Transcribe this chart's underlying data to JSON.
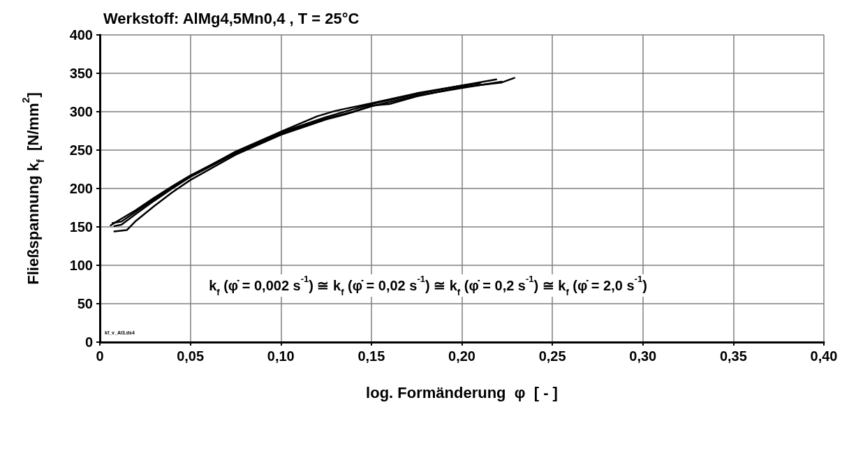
{
  "chart_data": {
    "type": "line",
    "title": "Werkstoff: AlMg4,5Mn0,4 , T = 25°C",
    "xlabel": "log. Formänderung  φ  [ - ]",
    "ylabel": "Fließspannung k$_{f}$  [N/mm$^{2}$]",
    "annotations": [
      "k$_{f}$ (φ̇ = 0,002 s$^{-1}$) ≅ k$_{f}$ (φ̇ = 0,02 s$^{-1}$) ≅ k$_{f}$ (φ̇ = 0,2 s$^{-1}$) ≅ k$_{f}$ (φ̇ = 2,0 s$^{-1}$)",
      "kf_v_Al3.ds4"
    ],
    "series": [
      {
        "color": "#000000",
        "x": [
          0.006,
          0.01,
          0.02,
          0.03,
          0.04,
          0.05,
          0.075,
          0.1,
          0.125,
          0.15,
          0.175,
          0.2,
          0.219
        ],
        "values": [
          152,
          158,
          172,
          188,
          203,
          217,
          247,
          273,
          293,
          310,
          323,
          334,
          342
        ]
      },
      {
        "color": "#000000",
        "x": [
          0.008,
          0.012,
          0.02,
          0.03,
          0.04,
          0.05,
          0.075,
          0.1,
          0.125,
          0.14,
          0.15,
          0.16,
          0.175,
          0.2,
          0.222,
          0.229
        ],
        "values": [
          151,
          153,
          167,
          184,
          200,
          215,
          246,
          271,
          291,
          300,
          308,
          310,
          320,
          332,
          338,
          344
        ]
      },
      {
        "color": "#000000",
        "x": [
          0.008,
          0.015,
          0.02,
          0.03,
          0.04,
          0.05,
          0.075,
          0.1,
          0.125,
          0.135,
          0.15,
          0.175,
          0.2,
          0.222
        ],
        "values": [
          144,
          146,
          158,
          177,
          195,
          211,
          244,
          270,
          290,
          296,
          307,
          321,
          331,
          339
        ]
      },
      {
        "color": "#000000",
        "x": [
          0.007,
          0.012,
          0.02,
          0.03,
          0.04,
          0.05,
          0.075,
          0.1,
          0.12,
          0.13,
          0.15,
          0.175,
          0.2,
          0.21
        ],
        "values": [
          155,
          157,
          170,
          186,
          201,
          216,
          248,
          274,
          294,
          301,
          311,
          324,
          334,
          337
        ]
      }
    ],
    "xlim": [
      0,
      0.4
    ],
    "xticks": [
      0,
      {
        "value": 0.05,
        "label": "0,05"
      },
      {
        "value": 0.1,
        "label": "0,10"
      },
      {
        "value": 0.15,
        "label": "0,15"
      },
      {
        "value": 0.2,
        "label": "0,20"
      },
      {
        "value": 0.25,
        "label": "0,25"
      },
      {
        "value": 0.3,
        "label": "0,30"
      },
      {
        "value": 0.35,
        "label": "0,35"
      },
      {
        "value": 0.4,
        "label": "0,40"
      }
    ],
    "ylim": [
      0,
      400
    ],
    "yticks": [
      0,
      50,
      100,
      150,
      200,
      250,
      300,
      350,
      400
    ],
    "grid": true,
    "marker": "none",
    "line_style": "solid"
  }
}
